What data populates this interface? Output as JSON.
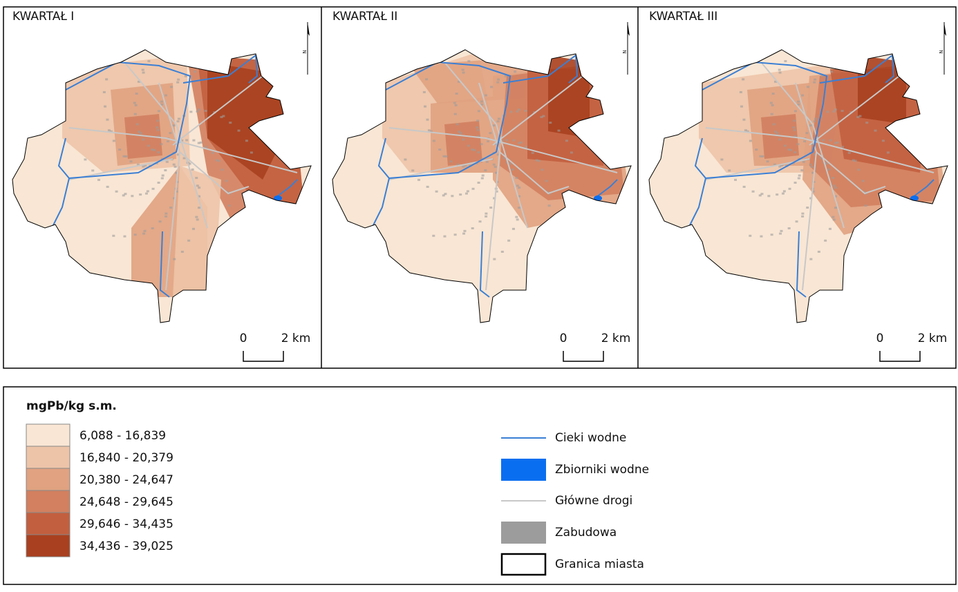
{
  "panels": [
    {
      "title": "KWARTAŁ I",
      "scale": {
        "start": "0",
        "end": "2 km"
      }
    },
    {
      "title": "KWARTAŁ II",
      "scale": {
        "start": "0",
        "end": "2 km"
      }
    },
    {
      "title": "KWARTAŁ III",
      "scale": {
        "start": "0",
        "end": "2 km"
      }
    }
  ],
  "north_label": "N",
  "legend": {
    "title": "mgPb/kg s.m.",
    "classes": [
      {
        "label": "6,088 - 16,839",
        "color": "#f9e6d4"
      },
      {
        "label": "16,840 - 20,379",
        "color": "#edc4a8"
      },
      {
        "label": "20,380 - 24,647",
        "color": "#e0a281"
      },
      {
        "label": "24,648 - 29,645",
        "color": "#d2805f"
      },
      {
        "label": "29,646 - 34,435",
        "color": "#c25f3f"
      },
      {
        "label": "34,436 - 39,025",
        "color": "#a9401f"
      }
    ],
    "layers": [
      {
        "label": "Cieki wodne",
        "color": "#3a7fd5"
      },
      {
        "label": "Zbiorniki wodne",
        "color": "#0a6ef0"
      },
      {
        "label": "Główne drogi",
        "color": "#c8c8c8"
      },
      {
        "label": "Zabudowa",
        "color": "#9c9c9c"
      },
      {
        "label": "Granica miasta",
        "color": "#000000"
      }
    ]
  }
}
